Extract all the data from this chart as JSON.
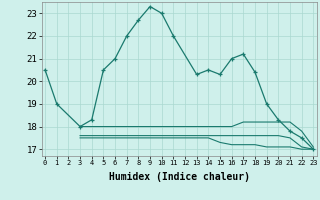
{
  "xlabel": "Humidex (Indice chaleur)",
  "x": [
    0,
    1,
    2,
    3,
    4,
    5,
    6,
    7,
    8,
    9,
    10,
    11,
    12,
    13,
    14,
    15,
    16,
    17,
    18,
    19,
    20,
    21,
    22,
    23
  ],
  "line1": [
    20.5,
    19.0,
    null,
    18.0,
    18.3,
    20.5,
    21.0,
    22.0,
    22.7,
    23.3,
    23.0,
    22.0,
    null,
    20.3,
    20.5,
    20.3,
    21.0,
    21.2,
    20.4,
    19.0,
    18.3,
    17.8,
    17.5,
    17.0
  ],
  "line2": [
    null,
    null,
    null,
    18.0,
    18.0,
    18.0,
    18.0,
    18.0,
    18.0,
    18.0,
    18.0,
    18.0,
    18.0,
    18.0,
    18.0,
    18.0,
    18.0,
    18.2,
    18.2,
    18.2,
    18.2,
    18.2,
    17.8,
    17.1
  ],
  "line3": [
    null,
    null,
    null,
    17.5,
    17.5,
    17.5,
    17.5,
    17.5,
    17.5,
    17.5,
    17.5,
    17.5,
    17.5,
    17.5,
    17.5,
    17.3,
    17.2,
    17.2,
    17.2,
    17.1,
    17.1,
    17.1,
    17.0,
    17.0
  ],
  "line4": [
    null,
    null,
    null,
    17.6,
    17.6,
    17.6,
    17.6,
    17.6,
    17.6,
    17.6,
    17.6,
    17.6,
    17.6,
    17.6,
    17.6,
    17.6,
    17.6,
    17.6,
    17.6,
    17.6,
    17.6,
    17.5,
    17.1,
    17.0
  ],
  "color": "#1a7a6e",
  "bg_color": "#cff0eb",
  "grid_color": "#aad8d0",
  "ylim": [
    16.7,
    23.5
  ],
  "yticks": [
    17,
    18,
    19,
    20,
    21,
    22,
    23
  ],
  "xlim": [
    -0.3,
    23.3
  ]
}
